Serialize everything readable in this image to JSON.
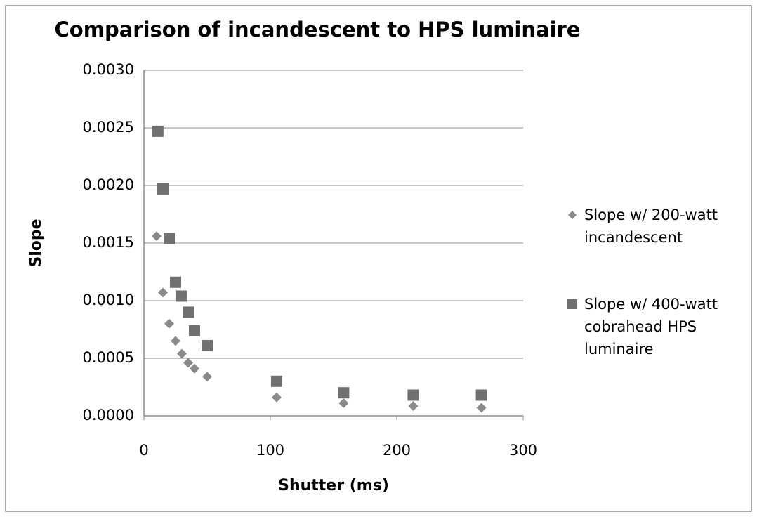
{
  "chart_data": {
    "type": "scatter",
    "title": "Comparison of incandescent to HPS luminaire",
    "xlabel": "Shutter (ms)",
    "ylabel": "Slope",
    "xlim": [
      0,
      300
    ],
    "xticks": [
      0,
      100,
      200,
      300
    ],
    "ylim": [
      0,
      0.003
    ],
    "yticks": [
      {
        "value": 0,
        "label": "0.0000"
      },
      {
        "value": 0.0005,
        "label": "0.0005"
      },
      {
        "value": 0.001,
        "label": "0.0010"
      },
      {
        "value": 0.0015,
        "label": "0.0015"
      },
      {
        "value": 0.002,
        "label": "0.0020"
      },
      {
        "value": 0.0025,
        "label": "0.0025"
      },
      {
        "value": 0.003,
        "label": "0.0030"
      }
    ],
    "grid": true,
    "legend": "right",
    "series": [
      {
        "name": "Slope w/ 200-watt incandescent",
        "color": "#8a8a8a",
        "marker": "diamond",
        "x": [
          10,
          15,
          20,
          25,
          30,
          35,
          40,
          50,
          105,
          158,
          213,
          267
        ],
        "values": [
          0.00156,
          0.00107,
          0.0008,
          0.00065,
          0.00054,
          0.00046,
          0.00041,
          0.00034,
          0.00016,
          0.00011,
          8.5e-05,
          7e-05
        ]
      },
      {
        "name": "Slope w/ 400-watt cobrahead HPS luminaire",
        "color": "#707070",
        "marker": "square",
        "x": [
          11,
          15,
          20,
          25,
          30,
          35,
          40,
          50,
          105,
          158,
          213,
          267
        ],
        "values": [
          0.00247,
          0.00197,
          0.00154,
          0.00116,
          0.00104,
          0.0009,
          0.00074,
          0.00061,
          0.0003,
          0.0002,
          0.00018,
          0.00018
        ]
      }
    ]
  }
}
